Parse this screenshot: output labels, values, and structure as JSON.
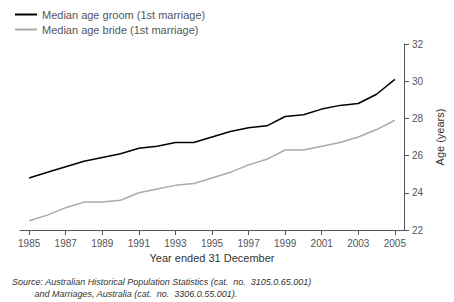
{
  "chart_data": {
    "type": "line",
    "x": [
      1985,
      1986,
      1987,
      1988,
      1989,
      1990,
      1991,
      1992,
      1993,
      1994,
      1995,
      1996,
      1997,
      1998,
      1999,
      2000,
      2001,
      2002,
      2003,
      2004,
      2005
    ],
    "series": [
      {
        "name": "Median age groom (1st marriage)",
        "color": "#000000",
        "values": [
          24.8,
          25.1,
          25.4,
          25.7,
          25.9,
          26.1,
          26.4,
          26.5,
          26.7,
          26.7,
          27.0,
          27.3,
          27.5,
          27.6,
          28.1,
          28.2,
          28.5,
          28.7,
          28.8,
          29.3,
          30.1
        ]
      },
      {
        "name": "Median age bride (1st marriage)",
        "color": "#aaaaaa",
        "values": [
          22.5,
          22.8,
          23.2,
          23.5,
          23.5,
          23.6,
          24.0,
          24.2,
          24.4,
          24.5,
          24.8,
          25.1,
          25.5,
          25.8,
          26.3,
          26.3,
          26.5,
          26.7,
          27.0,
          27.4,
          27.9
        ]
      }
    ],
    "xlabel": "Year ended 31 December",
    "ylabel": "Age (years)",
    "xlim": [
      1984.5,
      2005.5
    ],
    "xticks": [
      1985,
      1987,
      1989,
      1991,
      1993,
      1995,
      1997,
      1999,
      2001,
      2003,
      2005
    ],
    "ylim": [
      22,
      32
    ],
    "yticks": [
      22,
      24,
      26,
      28,
      30,
      32
    ],
    "annotations": [
      "Source: Australian Historical Population Statistics (cat.  no.  3105.0.65.001)",
      "         and Marriages, Australia (cat.  no.  3306.0.55.001)."
    ],
    "legend": "upper left",
    "grid": false
  }
}
